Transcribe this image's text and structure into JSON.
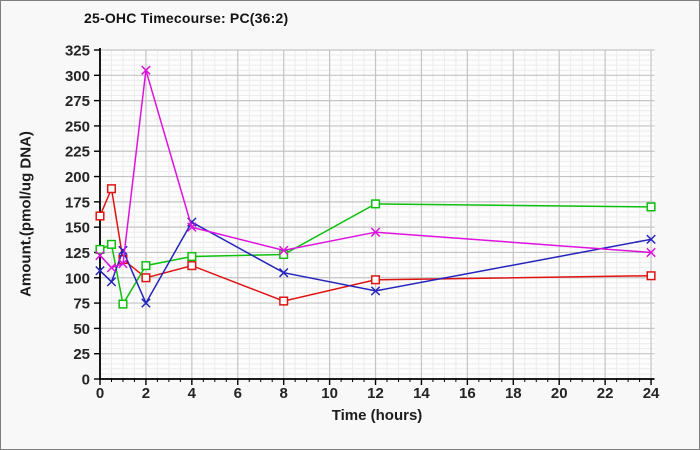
{
  "window": {
    "background": "#f8f8f8",
    "border_color": "#7f7f7f"
  },
  "chart_data": {
    "type": "line",
    "title": "25-OHC Timecourse: PC(36:2)",
    "xlabel": "Time (hours)",
    "ylabel": "Amount.(pmol/ug DNA)",
    "x": [
      0,
      0.5,
      1,
      2,
      4,
      8,
      12,
      24
    ],
    "series": [
      {
        "name": "red-squares",
        "color": "#e01212",
        "marker": "square",
        "values": [
          161,
          188,
          118,
          100,
          112,
          77,
          98,
          102
        ]
      },
      {
        "name": "green-squares",
        "color": "#0cc00c",
        "marker": "square",
        "values": [
          128,
          133,
          74,
          112,
          121,
          123,
          173,
          170
        ]
      },
      {
        "name": "blue-crosses",
        "color": "#2424bc",
        "marker": "cross",
        "values": [
          107,
          96,
          127,
          75,
          155,
          105,
          87,
          138
        ]
      },
      {
        "name": "magenta-crosses",
        "color": "#de12de",
        "marker": "cross",
        "values": [
          122,
          110,
          114,
          305,
          150,
          127,
          145,
          125
        ]
      }
    ],
    "xlim": [
      0,
      24.15
    ],
    "ylim": [
      0,
      325
    ],
    "x_major_ticks": [
      0,
      2,
      4,
      6,
      8,
      10,
      12,
      14,
      16,
      18,
      20,
      22,
      24
    ],
    "y_major_ticks": [
      0,
      25,
      50,
      75,
      100,
      125,
      150,
      175,
      200,
      225,
      250,
      275,
      300,
      325
    ],
    "x_minor_step": 0.5,
    "y_minor_step": 5,
    "grid": {
      "on": true,
      "major_color": "#c4c4c4",
      "minor_color": "#ececec",
      "plot_bg": "#fdfdfd"
    },
    "axis_color": "#000000",
    "tick_label_color": "#242424",
    "legend": "none"
  }
}
